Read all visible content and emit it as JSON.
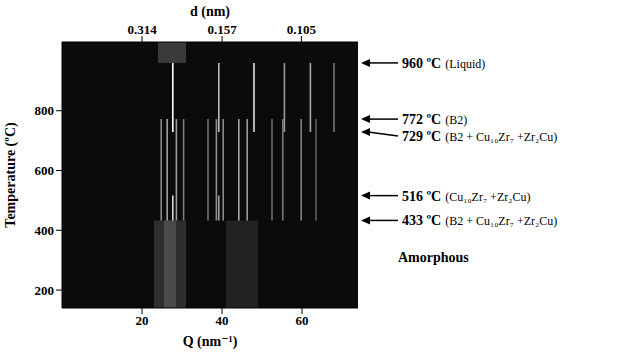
{
  "chart_data": {
    "type": "heatmap",
    "x_label": "Q (nm⁻¹)",
    "xlim": [
      0,
      74
    ],
    "xticks": [
      20,
      40,
      60
    ],
    "x2_label": "d (nm)",
    "x2ticks": [
      0.314,
      0.157,
      0.105
    ],
    "y_label": "Temperature (ºC)",
    "ylim": [
      140,
      1030
    ],
    "yticks": [
      200,
      400,
      600,
      800
    ],
    "annotations": [
      {
        "temperature": 960,
        "label": "960 ºC",
        "phase": "(Liquid)"
      },
      {
        "temperature": 772,
        "label": "772 ºC",
        "phase": "(B2)"
      },
      {
        "temperature": 729,
        "label": "729 ºC",
        "phase": "(B2 + Cu₁₀Zr₇ +Zr₂Cu)"
      },
      {
        "temperature": 516,
        "label": "516 ºC",
        "phase": "(Cu₁₀Zr₇ +Zr₂Cu)"
      },
      {
        "temperature": 433,
        "label": "433 ºC",
        "phase": "(B2 + Cu₁₀Zr₇ +Zr₂Cu)"
      }
    ],
    "text": "Amorphous",
    "bands": [
      {
        "q_min": 23,
        "q_max": 31,
        "t_min": 140,
        "t_max": 433,
        "color": "#2e2e2e"
      },
      {
        "q_min": 25.5,
        "q_max": 28.5,
        "t_min": 140,
        "t_max": 433,
        "color": "#4a4a4a"
      },
      {
        "q_min": 41,
        "q_max": 49,
        "t_min": 140,
        "t_max": 433,
        "color": "#222222"
      },
      {
        "q_min": 24,
        "q_max": 31,
        "t_min": 960,
        "t_max": 1030,
        "color": "#3a3a3a"
      },
      {
        "q_min": 24.6,
        "q_max": 25.0,
        "t_min": 433,
        "t_max": 772,
        "color": "#8a8a8a"
      },
      {
        "q_min": 26.1,
        "q_max": 26.5,
        "t_min": 433,
        "t_max": 772,
        "color": "#a0a0a0"
      },
      {
        "q_min": 28.4,
        "q_max": 28.8,
        "t_min": 433,
        "t_max": 772,
        "color": "#9a9a9a"
      },
      {
        "q_min": 30.2,
        "q_max": 30.6,
        "t_min": 433,
        "t_max": 772,
        "color": "#7a7a7a"
      },
      {
        "q_min": 36.3,
        "q_max": 36.7,
        "t_min": 433,
        "t_max": 772,
        "color": "#707070"
      },
      {
        "q_min": 38.4,
        "q_max": 38.8,
        "t_min": 433,
        "t_max": 772,
        "color": "#909090"
      },
      {
        "q_min": 40.1,
        "q_max": 40.5,
        "t_min": 433,
        "t_max": 772,
        "color": "#8a8a8a"
      },
      {
        "q_min": 44.0,
        "q_max": 44.4,
        "t_min": 433,
        "t_max": 772,
        "color": "#a8a8a8"
      },
      {
        "q_min": 46.1,
        "q_max": 46.5,
        "t_min": 433,
        "t_max": 772,
        "color": "#9a9a9a"
      },
      {
        "q_min": 52.3,
        "q_max": 52.7,
        "t_min": 433,
        "t_max": 772,
        "color": "#6a6a6a"
      },
      {
        "q_min": 55.0,
        "q_max": 55.4,
        "t_min": 433,
        "t_max": 772,
        "color": "#7a7a7a"
      },
      {
        "q_min": 59.6,
        "q_max": 60.0,
        "t_min": 433,
        "t_max": 772,
        "color": "#808080"
      },
      {
        "q_min": 63.3,
        "q_max": 63.7,
        "t_min": 433,
        "t_max": 772,
        "color": "#606060"
      },
      {
        "q_min": 27.5,
        "q_max": 27.9,
        "t_min": 433,
        "t_max": 516,
        "color": "#d8d8d8"
      },
      {
        "q_min": 39.0,
        "q_max": 39.4,
        "t_min": 433,
        "t_max": 516,
        "color": "#a0a0a0"
      },
      {
        "q_min": 27.5,
        "q_max": 27.9,
        "t_min": 729,
        "t_max": 960,
        "color": "#ffffff"
      },
      {
        "q_min": 39.0,
        "q_max": 39.4,
        "t_min": 729,
        "t_max": 960,
        "color": "#bbbbbb"
      },
      {
        "q_min": 47.8,
        "q_max": 48.2,
        "t_min": 729,
        "t_max": 960,
        "color": "#e0e0e0"
      },
      {
        "q_min": 55.4,
        "q_max": 55.8,
        "t_min": 729,
        "t_max": 960,
        "color": "#999999"
      },
      {
        "q_min": 61.9,
        "q_max": 62.3,
        "t_min": 729,
        "t_max": 960,
        "color": "#aaaaaa"
      },
      {
        "q_min": 67.8,
        "q_max": 68.2,
        "t_min": 729,
        "t_max": 960,
        "color": "#777777"
      }
    ]
  }
}
